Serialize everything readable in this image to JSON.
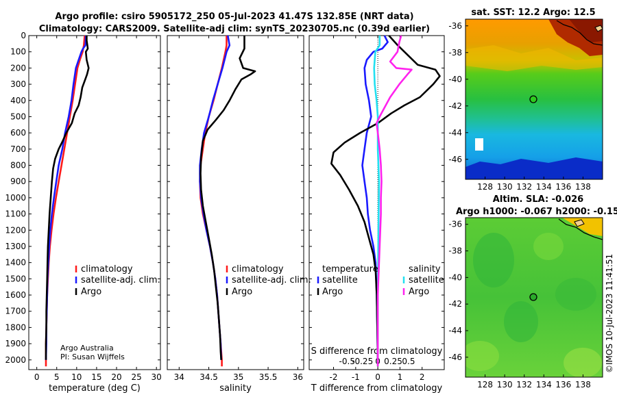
{
  "title": {
    "line1": "Argo profile: csiro 5905172_250 05-Jul-2023 41.47S 132.85E (NRT data)",
    "line2": "Climatology: CARS2009. Satellite-adj clim: synTS_20230705.nc (0.39d earlier)"
  },
  "credit": {
    "org": "Argo Australia",
    "pi": "PI: Susan Wijffels"
  },
  "watermark": "©IMOS 10-Jul-2023 11:41:51",
  "colors": {
    "climatology": "#ff1a1a",
    "satellite": "#1a1aff",
    "argo": "#000000",
    "sat_salinity": "#22e0f0",
    "argo_salinity": "#ff22ee"
  },
  "chart_data": [
    {
      "type": "line",
      "id": "temperature",
      "xlabel": "temperature (deg C)",
      "ylabel": "depth",
      "xlim": [
        -2,
        31
      ],
      "ylim": [
        2060,
        0
      ],
      "xticks": [
        0,
        5,
        10,
        15,
        20,
        25,
        30
      ],
      "yticks": [
        0,
        100,
        200,
        300,
        400,
        500,
        600,
        700,
        800,
        900,
        1000,
        1100,
        1200,
        1300,
        1400,
        1500,
        1600,
        1700,
        1800,
        1900,
        2000
      ],
      "legend": [
        "climatology",
        "satellite-adj. clim.",
        "Argo"
      ],
      "series": [
        {
          "name": "climatology",
          "color": "#ff1a1a",
          "points": [
            [
              12.0,
              0
            ],
            [
              11.8,
              60
            ],
            [
              11.5,
              100
            ],
            [
              10.8,
              150
            ],
            [
              10.2,
              200
            ],
            [
              9.6,
              300
            ],
            [
              9.0,
              400
            ],
            [
              8.3,
              500
            ],
            [
              7.6,
              600
            ],
            [
              6.9,
              700
            ],
            [
              6.2,
              800
            ],
            [
              5.5,
              900
            ],
            [
              4.8,
              1000
            ],
            [
              4.2,
              1100
            ],
            [
              3.7,
              1200
            ],
            [
              3.3,
              1300
            ],
            [
              3.0,
              1400
            ],
            [
              2.8,
              1500
            ],
            [
              2.6,
              1600
            ],
            [
              2.5,
              1700
            ],
            [
              2.4,
              1800
            ],
            [
              2.3,
              1900
            ],
            [
              2.3,
              2000
            ],
            [
              2.3,
              2040
            ]
          ]
        },
        {
          "name": "satellite-adj. clim.",
          "color": "#1a1aff",
          "points": [
            [
              12.3,
              0
            ],
            [
              12.2,
              60
            ],
            [
              11.6,
              80
            ],
            [
              11.2,
              100
            ],
            [
              10.5,
              150
            ],
            [
              9.8,
              200
            ],
            [
              9.2,
              300
            ],
            [
              8.7,
              400
            ],
            [
              8.0,
              500
            ],
            [
              7.1,
              600
            ],
            [
              6.4,
              700
            ],
            [
              5.5,
              800
            ],
            [
              4.9,
              900
            ],
            [
              4.3,
              1000
            ],
            [
              3.8,
              1100
            ],
            [
              3.4,
              1200
            ],
            [
              3.1,
              1300
            ],
            [
              2.9,
              1400
            ],
            [
              2.7,
              1500
            ],
            [
              2.6,
              1600
            ],
            [
              2.5,
              1700
            ],
            [
              2.4,
              1800
            ],
            [
              2.4,
              1900
            ],
            [
              2.3,
              2000
            ]
          ]
        },
        {
          "name": "Argo",
          "color": "#000000",
          "points": [
            [
              12.5,
              0
            ],
            [
              12.5,
              30
            ],
            [
              12.8,
              80
            ],
            [
              12.3,
              100
            ],
            [
              12.5,
              150
            ],
            [
              13.0,
              200
            ],
            [
              12.6,
              240
            ],
            [
              12.0,
              280
            ],
            [
              11.4,
              320
            ],
            [
              11.0,
              380
            ],
            [
              10.5,
              430
            ],
            [
              9.5,
              480
            ],
            [
              8.8,
              540
            ],
            [
              7.4,
              600
            ],
            [
              6.5,
              650
            ],
            [
              5.5,
              700
            ],
            [
              4.6,
              760
            ],
            [
              4.1,
              820
            ],
            [
              3.8,
              900
            ],
            [
              3.5,
              1000
            ],
            [
              3.2,
              1100
            ],
            [
              3.0,
              1200
            ],
            [
              2.8,
              1300
            ],
            [
              2.7,
              1400
            ],
            [
              2.6,
              1500
            ],
            [
              2.5,
              1600
            ],
            [
              2.4,
              1700
            ],
            [
              2.4,
              1800
            ],
            [
              2.3,
              1900
            ],
            [
              2.3,
              2000
            ]
          ]
        }
      ]
    },
    {
      "type": "line",
      "id": "salinity",
      "xlabel": "salinity",
      "ylabel": "depth",
      "xlim": [
        33.8,
        36.1
      ],
      "ylim": [
        2060,
        0
      ],
      "xticks": [
        34,
        34.5,
        35,
        35.5,
        36
      ],
      "legend": [
        "climatology",
        "satellite-adj. clim.",
        "Argo"
      ],
      "series": [
        {
          "name": "climatology",
          "color": "#ff1a1a",
          "points": [
            [
              34.8,
              0
            ],
            [
              34.8,
              60
            ],
            [
              34.78,
              100
            ],
            [
              34.72,
              200
            ],
            [
              34.65,
              300
            ],
            [
              34.58,
              400
            ],
            [
              34.5,
              500
            ],
            [
              34.44,
              600
            ],
            [
              34.4,
              700
            ],
            [
              34.36,
              800
            ],
            [
              34.35,
              900
            ],
            [
              34.36,
              1000
            ],
            [
              34.4,
              1100
            ],
            [
              34.46,
              1200
            ],
            [
              34.52,
              1300
            ],
            [
              34.57,
              1400
            ],
            [
              34.61,
              1500
            ],
            [
              34.64,
              1600
            ],
            [
              34.66,
              1700
            ],
            [
              34.68,
              1800
            ],
            [
              34.7,
              1900
            ],
            [
              34.72,
              2000
            ],
            [
              34.72,
              2040
            ]
          ]
        },
        {
          "name": "satellite-adj. clim.",
          "color": "#1a1aff",
          "points": [
            [
              34.82,
              0
            ],
            [
              34.85,
              60
            ],
            [
              34.8,
              100
            ],
            [
              34.73,
              200
            ],
            [
              34.65,
              300
            ],
            [
              34.57,
              400
            ],
            [
              34.5,
              500
            ],
            [
              34.42,
              600
            ],
            [
              34.38,
              700
            ],
            [
              34.35,
              800
            ],
            [
              34.35,
              900
            ],
            [
              34.37,
              1000
            ],
            [
              34.41,
              1100
            ],
            [
              34.46,
              1200
            ],
            [
              34.52,
              1300
            ],
            [
              34.57,
              1400
            ],
            [
              34.61,
              1500
            ],
            [
              34.64,
              1600
            ],
            [
              34.66,
              1700
            ],
            [
              34.68,
              1800
            ],
            [
              34.7,
              1900
            ],
            [
              34.71,
              2000
            ]
          ]
        },
        {
          "name": "Argo",
          "color": "#000000",
          "points": [
            [
              35.1,
              0
            ],
            [
              35.1,
              80
            ],
            [
              35.02,
              140
            ],
            [
              35.08,
              200
            ],
            [
              35.28,
              220
            ],
            [
              35.2,
              240
            ],
            [
              35.05,
              270
            ],
            [
              34.95,
              330
            ],
            [
              34.85,
              400
            ],
            [
              34.75,
              460
            ],
            [
              34.62,
              520
            ],
            [
              34.48,
              580
            ],
            [
              34.4,
              650
            ],
            [
              34.37,
              750
            ],
            [
              34.36,
              850
            ],
            [
              34.37,
              950
            ],
            [
              34.4,
              1050
            ],
            [
              34.45,
              1150
            ],
            [
              34.5,
              1250
            ],
            [
              34.55,
              1350
            ],
            [
              34.59,
              1450
            ],
            [
              34.62,
              1550
            ],
            [
              34.65,
              1650
            ],
            [
              34.67,
              1750
            ],
            [
              34.69,
              1850
            ],
            [
              34.7,
              1950
            ],
            [
              34.71,
              2000
            ]
          ]
        }
      ]
    },
    {
      "type": "line",
      "id": "difference",
      "xlabel": "T difference from climatology",
      "xlabel_top": "S difference from climatology",
      "xlim": [
        -3.1,
        3.0
      ],
      "ylim": [
        2060,
        0
      ],
      "xticks": [
        -2,
        -1,
        0,
        1,
        2
      ],
      "xticks_top": [
        -0.5,
        -0.25,
        0,
        0.25,
        0.5
      ],
      "legend": [
        "temperature",
        "satellite",
        "Argo",
        "salinity",
        "satellite",
        "Argo"
      ],
      "series": [
        {
          "name": "temperature satellite",
          "color": "#1a1aff",
          "points": [
            [
              0.3,
              0
            ],
            [
              0.45,
              40
            ],
            [
              0.2,
              80
            ],
            [
              -0.2,
              100
            ],
            [
              -0.5,
              150
            ],
            [
              -0.6,
              200
            ],
            [
              -0.55,
              300
            ],
            [
              -0.4,
              400
            ],
            [
              -0.3,
              500
            ],
            [
              -0.5,
              600
            ],
            [
              -0.6,
              700
            ],
            [
              -0.7,
              800
            ],
            [
              -0.6,
              900
            ],
            [
              -0.5,
              1000
            ],
            [
              -0.45,
              1100
            ],
            [
              -0.35,
              1200
            ],
            [
              -0.2,
              1300
            ],
            [
              -0.1,
              1400
            ],
            [
              -0.05,
              1600
            ],
            [
              0,
              2000
            ]
          ]
        },
        {
          "name": "temperature Argo",
          "color": "#000000",
          "points": [
            [
              0.5,
              0
            ],
            [
              0.9,
              60
            ],
            [
              1.2,
              100
            ],
            [
              1.8,
              180
            ],
            [
              2.6,
              210
            ],
            [
              2.8,
              250
            ],
            [
              2.5,
              300
            ],
            [
              1.9,
              380
            ],
            [
              1.2,
              430
            ],
            [
              0.6,
              480
            ],
            [
              0,
              540
            ],
            [
              -0.8,
              600
            ],
            [
              -1.5,
              660
            ],
            [
              -2.0,
              720
            ],
            [
              -2.1,
              790
            ],
            [
              -1.7,
              860
            ],
            [
              -1.3,
              950
            ],
            [
              -0.9,
              1050
            ],
            [
              -0.6,
              1150
            ],
            [
              -0.4,
              1250
            ],
            [
              -0.2,
              1350
            ],
            [
              -0.1,
              1450
            ],
            [
              -0.05,
              1600
            ],
            [
              0,
              2000
            ]
          ]
        },
        {
          "name": "salinity satellite",
          "color": "#22e0f0",
          "points": [
            [
              0.03,
              0
            ],
            [
              0.03,
              60
            ],
            [
              -0.04,
              100
            ],
            [
              -0.06,
              200
            ],
            [
              -0.05,
              300
            ],
            [
              -0.02,
              400
            ],
            [
              0,
              500
            ],
            [
              0,
              700
            ],
            [
              0.02,
              900
            ],
            [
              0.01,
              1200
            ],
            [
              0,
              1600
            ],
            [
              0,
              2040
            ]
          ]
        },
        {
          "name": "salinity Argo",
          "color": "#ff22ee",
          "points": [
            [
              0.38,
              0
            ],
            [
              0.35,
              40
            ],
            [
              0.32,
              100
            ],
            [
              0.2,
              160
            ],
            [
              0.3,
              200
            ],
            [
              0.55,
              210
            ],
            [
              0.48,
              240
            ],
            [
              0.35,
              300
            ],
            [
              0.2,
              380
            ],
            [
              0.1,
              450
            ],
            [
              0.03,
              500
            ],
            [
              -0.02,
              540
            ],
            [
              0.0,
              600
            ],
            [
              0.03,
              700
            ],
            [
              0.05,
              800
            ],
            [
              0.06,
              900
            ],
            [
              0.05,
              1000
            ],
            [
              0.05,
              1100
            ],
            [
              0.04,
              1200
            ],
            [
              0.03,
              1300
            ],
            [
              0.02,
              1400
            ],
            [
              0.0,
              1600
            ],
            [
              0.0,
              2040
            ]
          ]
        }
      ]
    },
    {
      "type": "heatmap",
      "id": "sst_map",
      "title": "sat. SST: 12.2 Argo: 12.5",
      "xlim": [
        126,
        140
      ],
      "ylim": [
        -47.5,
        -35.5
      ],
      "xticks": [
        128,
        130,
        132,
        134,
        136,
        138
      ],
      "yticks": [
        -36,
        -38,
        -40,
        -42,
        -44,
        -46
      ],
      "float_position": {
        "lon": 132.85,
        "lat": -41.47
      }
    },
    {
      "type": "heatmap",
      "id": "sla_map",
      "title": "Altim. SLA: -0.026",
      "subtitle": "Argo h1000: -0.067 h2000: -0.15",
      "xlim": [
        126,
        140
      ],
      "ylim": [
        -47.5,
        -35.5
      ],
      "xticks": [
        128,
        130,
        132,
        134,
        136,
        138
      ],
      "yticks": [
        -36,
        -38,
        -40,
        -42,
        -44,
        -46
      ],
      "float_position": {
        "lon": 132.85,
        "lat": -41.47
      }
    }
  ]
}
